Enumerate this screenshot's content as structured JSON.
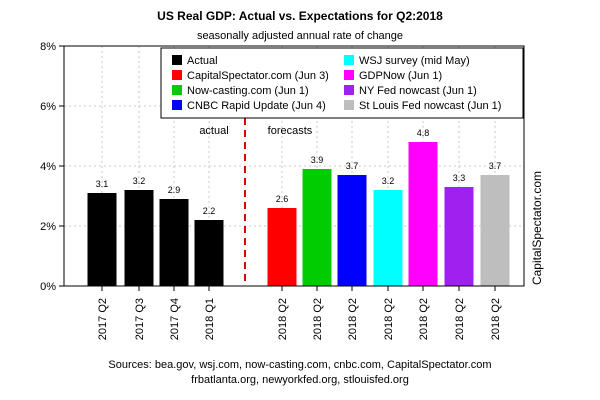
{
  "chart_data": {
    "type": "bar",
    "title": "US Real GDP: Actual vs. Expectations for Q2:2018",
    "subtitle": "seasonally adjusted annual rate of change",
    "categories": [
      "2017 Q2",
      "2017 Q3",
      "2017 Q4",
      "2018 Q1",
      "2018 Q2",
      "2018 Q2",
      "2018 Q2",
      "2018 Q2",
      "2018 Q2",
      "2018 Q2",
      "2018 Q2"
    ],
    "values": [
      3.1,
      3.2,
      2.9,
      2.2,
      2.6,
      3.9,
      3.7,
      3.2,
      4.8,
      3.3,
      3.7
    ],
    "value_labels": [
      "3.1",
      "3.2",
      "2.9",
      "2.2",
      "2.6",
      "3.9",
      "3.7",
      "3.2",
      "4.8",
      "3.3",
      "3.7"
    ],
    "bar_colors": [
      "#000000",
      "#000000",
      "#000000",
      "#000000",
      "#ff0000",
      "#00cd00",
      "#0000ff",
      "#00ffff",
      "#ff00ff",
      "#a020f0",
      "#bebebe"
    ],
    "ylim": [
      0,
      8
    ],
    "yticks": [
      "0%",
      "2%",
      "4%",
      "6%",
      "8%"
    ],
    "ytick_values": [
      0,
      2,
      4,
      6,
      8
    ],
    "grid": true,
    "legend_position": "top-right",
    "legend": [
      {
        "label": "Actual",
        "color": "#000000"
      },
      {
        "label": "CapitalSpectator.com (Jun 3)",
        "color": "#ff0000"
      },
      {
        "label": "Now-casting.com (Jun 1)",
        "color": "#00cd00"
      },
      {
        "label": "CNBC Rapid Update (Jun 4)",
        "color": "#0000ff"
      },
      {
        "label": "WSJ survey (mid May)",
        "color": "#00ffff"
      },
      {
        "label": "GDPNow (Jun 1)",
        "color": "#ff00ff"
      },
      {
        "label": "NY Fed nowcast (Jun 1)",
        "color": "#a020f0"
      },
      {
        "label": "St Louis Fed nowcast (Jun 1)",
        "color": "#bebebe"
      }
    ],
    "annotations": {
      "actual": "actual",
      "forecasts": "forecasts"
    },
    "side_label": "CapitalSpectator.com",
    "sources": [
      "Sources: bea.gov, wsj.com, now-casting.com, cnbc.com, CapitalSpectator.com",
      "frbatlanta.org, newyorkfed.org, stlouisfed.org"
    ]
  }
}
